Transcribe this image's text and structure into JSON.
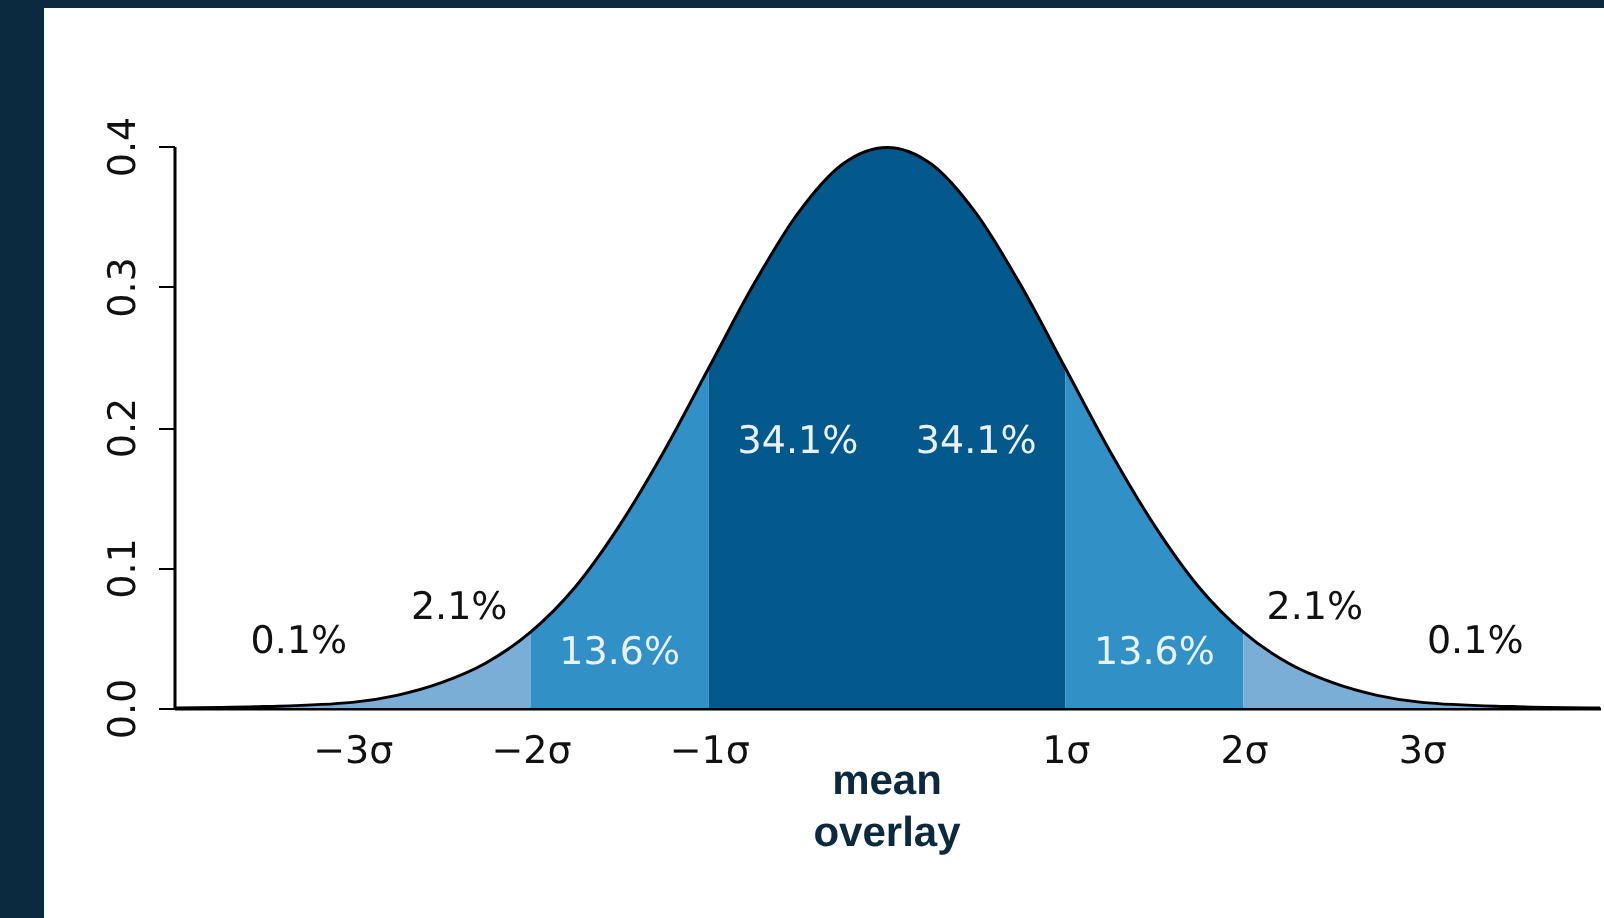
{
  "chart_data": {
    "type": "area",
    "xlim": [
      -4,
      4
    ],
    "ylim": [
      0,
      0.4
    ],
    "xticks": [
      {
        "value": -3,
        "label": "−3σ"
      },
      {
        "value": -2,
        "label": "−2σ"
      },
      {
        "value": -1,
        "label": "−1σ"
      },
      {
        "value": 1,
        "label": "1σ"
      },
      {
        "value": 2,
        "label": "2σ"
      },
      {
        "value": 3,
        "label": "3σ"
      }
    ],
    "yticks": [
      {
        "value": 0,
        "label": "0.0"
      },
      0.1,
      0.2,
      0.3,
      0.4
    ],
    "grid": false,
    "series": [
      {
        "color": "#7aaed6",
        "x": [
          -4,
          -3.5,
          -3,
          -2.75,
          -2.5,
          -2.25,
          -2
        ],
        "values": [
          0.0,
          0.001,
          0.004,
          0.009,
          0.018,
          0.032,
          0.054
        ]
      },
      {
        "color": "#3190c6",
        "x": [
          -2,
          -1.75,
          -1.5,
          -1.25,
          -1
        ],
        "values": [
          0.054,
          0.086,
          0.13,
          0.183,
          0.242
        ]
      },
      {
        "color": "#04598c",
        "x": [
          -1,
          -0.75,
          -0.5,
          -0.25,
          0,
          0.25,
          0.5,
          0.75,
          1
        ],
        "values": [
          0.242,
          0.301,
          0.352,
          0.387,
          0.399,
          0.387,
          0.352,
          0.301,
          0.242
        ]
      },
      {
        "color": "#3190c6",
        "x": [
          1,
          1.25,
          1.5,
          1.75,
          2
        ],
        "values": [
          0.242,
          0.183,
          0.13,
          0.086,
          0.054
        ]
      },
      {
        "color": "#7aaed6",
        "x": [
          2,
          2.25,
          2.5,
          2.75,
          3,
          3.5,
          4
        ],
        "values": [
          0.054,
          0.032,
          0.018,
          0.009,
          0.004,
          0.001,
          0.0
        ]
      },
      {
        "type": "line",
        "color": "#000000",
        "x": [
          -4,
          -3.5,
          -3,
          -2.75,
          -2.5,
          -2.25,
          -2,
          -1.75,
          -1.5,
          -1.25,
          -1,
          -0.75,
          -0.5,
          -0.25,
          0,
          0.25,
          0.5,
          0.75,
          1,
          1.25,
          1.5,
          1.75,
          2,
          2.25,
          2.5,
          2.75,
          3,
          3.5,
          4
        ],
        "values": [
          0.0,
          0.001,
          0.004,
          0.009,
          0.018,
          0.032,
          0.054,
          0.086,
          0.13,
          0.183,
          0.242,
          0.301,
          0.352,
          0.387,
          0.399,
          0.387,
          0.352,
          0.301,
          0.242,
          0.183,
          0.13,
          0.086,
          0.054,
          0.032,
          0.018,
          0.009,
          0.004,
          0.001,
          0.0
        ]
      }
    ],
    "annotations": [
      "34.1%",
      "34.1%",
      "13.6%",
      "13.6%",
      "2.1%",
      "2.1%",
      "0.1%",
      "0.1%",
      "mean overlay"
    ]
  }
}
